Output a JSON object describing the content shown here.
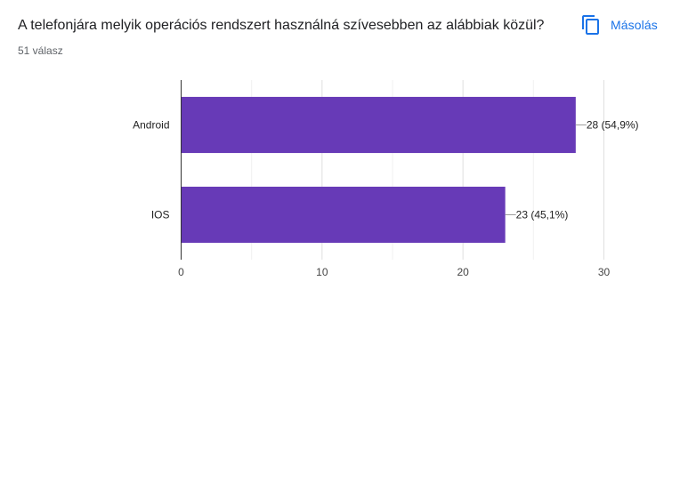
{
  "question": {
    "title": "A telefonjára melyik operációs rendszert használná szívesebben az alábbiak közül?",
    "response_count": "51 válasz"
  },
  "actions": {
    "copy_label": "Másolás",
    "copy_icon": "copy-icon"
  },
  "colors": {
    "bar": "#673ab7",
    "accent": "#1a73e8"
  },
  "chart_data": {
    "type": "bar",
    "orientation": "horizontal",
    "categories": [
      "Android",
      "IOS"
    ],
    "values": [
      28,
      23
    ],
    "value_labels": [
      "28 (54,9%)",
      "23 (45,1%)"
    ],
    "xlim": [
      0,
      30
    ],
    "xticks": [
      "0",
      "10",
      "20",
      "30"
    ],
    "grid": true,
    "title": "",
    "xlabel": "",
    "ylabel": ""
  }
}
